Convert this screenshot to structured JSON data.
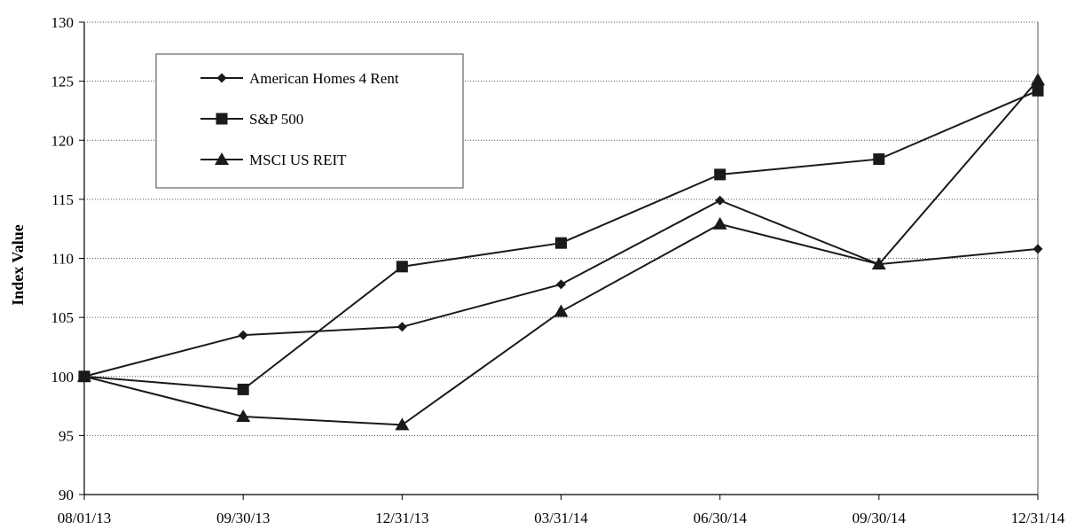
{
  "chart_data": {
    "type": "line",
    "title": "",
    "xlabel": "",
    "ylabel": "Index Value",
    "categories": [
      "08/01/13",
      "09/30/13",
      "12/31/13",
      "03/31/14",
      "06/30/14",
      "09/30/14",
      "12/31/14"
    ],
    "ylim": [
      90,
      130
    ],
    "yticks": [
      90,
      95,
      100,
      105,
      110,
      115,
      120,
      125,
      130
    ],
    "grid": "horizontal dotted",
    "legend_position": "top-left",
    "series": [
      {
        "name": "American Homes 4 Rent",
        "marker": "diamond",
        "color": "#1a1a1a",
        "values": [
          100,
          103.5,
          104.2,
          107.8,
          114.9,
          109.5,
          110.8
        ]
      },
      {
        "name": "S&P 500",
        "marker": "square",
        "color": "#1a1a1a",
        "values": [
          100,
          98.9,
          109.3,
          111.3,
          117.1,
          118.4,
          124.2
        ]
      },
      {
        "name": "MSCI US REIT",
        "marker": "triangle",
        "color": "#1a1a1a",
        "values": [
          100,
          96.6,
          95.9,
          105.5,
          112.9,
          109.5,
          125.1
        ]
      }
    ]
  }
}
